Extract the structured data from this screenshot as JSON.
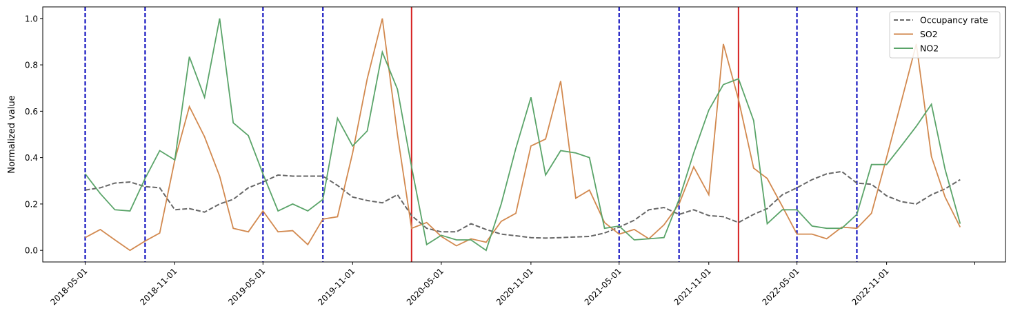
{
  "chart_data": {
    "type": "line",
    "title": "",
    "xlabel": "",
    "ylabel": "Normalized value",
    "x_start": "2018-05-01",
    "x_frequency": "monthly",
    "xlim": [
      "2018-02-03",
      "2023-07-03"
    ],
    "ylim": [
      -0.05,
      1.05
    ],
    "yticks": [
      0.0,
      0.2,
      0.4,
      0.6,
      0.8,
      1.0
    ],
    "ytick_labels": [
      "0.0",
      "0.2",
      "0.4",
      "0.6",
      "0.8",
      "1.0"
    ],
    "xticks": [
      "2018-05-01",
      "2018-11-01",
      "2019-05-01",
      "2019-11-01",
      "2020-05-01",
      "2020-11-01",
      "2021-05-01",
      "2021-11-01",
      "2022-05-01",
      "2022-11-01",
      "2023-05-01"
    ],
    "xtick_labels": [
      "2018-05-01",
      "2018-11-01",
      "2019-05-01",
      "2019-11-01",
      "2020-05-01",
      "2020-11-01",
      "2021-05-01",
      "2021-11-01",
      "2022-05-01",
      "2022-11-01",
      ""
    ],
    "grid": false,
    "legend_position": "top-right",
    "series": [
      {
        "name": "Occupancy rate",
        "color": "#666666",
        "style": "dashed",
        "values": [
          0.26,
          0.27,
          0.29,
          0.295,
          0.275,
          0.27,
          0.175,
          0.18,
          0.165,
          0.2,
          0.22,
          0.27,
          0.295,
          0.325,
          0.32,
          0.32,
          0.32,
          0.28,
          0.23,
          0.215,
          0.205,
          0.24,
          0.15,
          0.095,
          0.08,
          0.08,
          0.115,
          0.09,
          0.07,
          0.063,
          0.055,
          0.053,
          0.055,
          0.058,
          0.06,
          0.075,
          0.1,
          0.13,
          0.175,
          0.185,
          0.155,
          0.175,
          0.15,
          0.145,
          0.12,
          0.155,
          0.18,
          0.24,
          0.27,
          0.305,
          0.33,
          0.34,
          0.29,
          0.285,
          0.235,
          0.21,
          0.2,
          0.24,
          0.265,
          0.305
        ]
      },
      {
        "name": "SO2",
        "color": "#d2894f",
        "style": "solid",
        "values": [
          0.055,
          0.09,
          0.045,
          0.0,
          0.04,
          0.075,
          0.39,
          0.62,
          0.49,
          0.32,
          0.095,
          0.08,
          0.17,
          0.08,
          0.085,
          0.025,
          0.135,
          0.145,
          0.42,
          0.74,
          1.0,
          0.5,
          0.095,
          0.12,
          0.06,
          0.02,
          0.05,
          0.035,
          0.125,
          0.16,
          0.45,
          0.48,
          0.73,
          0.225,
          0.26,
          0.12,
          0.07,
          0.09,
          0.05,
          0.11,
          0.2,
          0.36,
          0.24,
          0.89,
          0.65,
          0.355,
          0.31,
          0.19,
          0.07,
          0.07,
          0.05,
          0.1,
          0.095,
          0.16,
          0.4,
          0.64,
          0.89,
          0.405,
          0.23,
          0.1
        ]
      },
      {
        "name": "NO2",
        "color": "#5aa469",
        "style": "solid",
        "values": [
          0.33,
          0.245,
          0.175,
          0.17,
          0.31,
          0.43,
          0.39,
          0.835,
          0.66,
          1.0,
          0.55,
          0.495,
          0.33,
          0.17,
          0.2,
          0.17,
          0.22,
          0.57,
          0.45,
          0.515,
          0.855,
          0.695,
          0.36,
          0.025,
          0.065,
          0.045,
          0.045,
          0.0,
          0.2,
          0.44,
          0.66,
          0.325,
          0.43,
          0.42,
          0.4,
          0.095,
          0.105,
          0.045,
          0.05,
          0.055,
          0.22,
          0.42,
          0.605,
          0.715,
          0.74,
          0.56,
          0.115,
          0.175,
          0.175,
          0.105,
          0.095,
          0.095,
          0.155,
          0.37,
          0.37,
          0.45,
          0.535,
          0.63,
          0.35,
          0.115
        ]
      }
    ],
    "vlines": [
      {
        "date": "2018-05-01",
        "color": "#0000bb",
        "style": "dashed"
      },
      {
        "date": "2018-09-01",
        "color": "#0000bb",
        "style": "dashed"
      },
      {
        "date": "2019-05-01",
        "color": "#0000bb",
        "style": "dashed"
      },
      {
        "date": "2019-09-01",
        "color": "#0000bb",
        "style": "dashed"
      },
      {
        "date": "2020-03-01",
        "color": "#d62020",
        "style": "solid"
      },
      {
        "date": "2021-05-01",
        "color": "#0000bb",
        "style": "dashed"
      },
      {
        "date": "2021-09-01",
        "color": "#0000bb",
        "style": "dashed"
      },
      {
        "date": "2022-01-01",
        "color": "#d62020",
        "style": "solid"
      },
      {
        "date": "2022-05-01",
        "color": "#0000bb",
        "style": "dashed"
      },
      {
        "date": "2022-09-01",
        "color": "#0000bb",
        "style": "dashed"
      }
    ]
  }
}
